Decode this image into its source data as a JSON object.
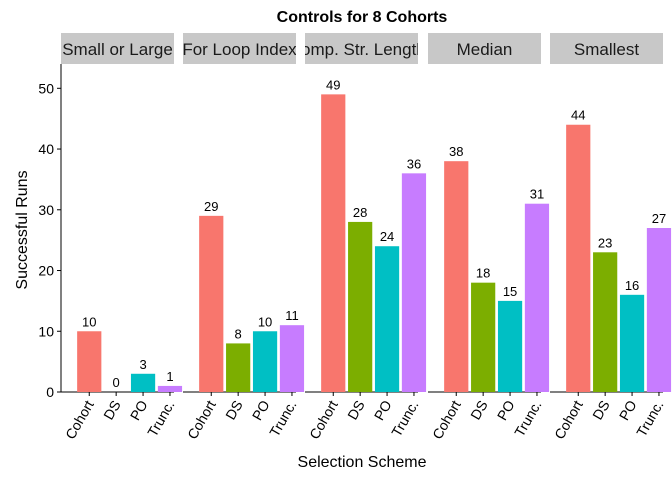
{
  "chart_data": {
    "type": "bar",
    "title": "Controls for 8 Cohorts",
    "xlabel": "Selection Scheme",
    "ylabel": "Successful Runs",
    "ylim": [
      0,
      54
    ],
    "yticks": [
      0,
      10,
      20,
      30,
      40,
      50
    ],
    "categories": [
      "Cohort",
      "DS",
      "PO",
      "Trunc."
    ],
    "category_colors": [
      "#F8766D",
      "#7CAE00",
      "#00BFC4",
      "#C77CFF"
    ],
    "strip_color": "#C8C8C8",
    "grid": false,
    "legend": "none",
    "panels": [
      {
        "name": "Small or Large",
        "values": [
          10,
          0,
          3,
          1
        ]
      },
      {
        "name": "For Loop Index",
        "values": [
          29,
          8,
          10,
          11
        ]
      },
      {
        "name": "Comp. Str. Lengths",
        "values": [
          49,
          28,
          24,
          36
        ]
      },
      {
        "name": "Median",
        "values": [
          38,
          18,
          15,
          31
        ]
      },
      {
        "name": "Smallest",
        "values": [
          44,
          23,
          16,
          27
        ]
      }
    ]
  }
}
